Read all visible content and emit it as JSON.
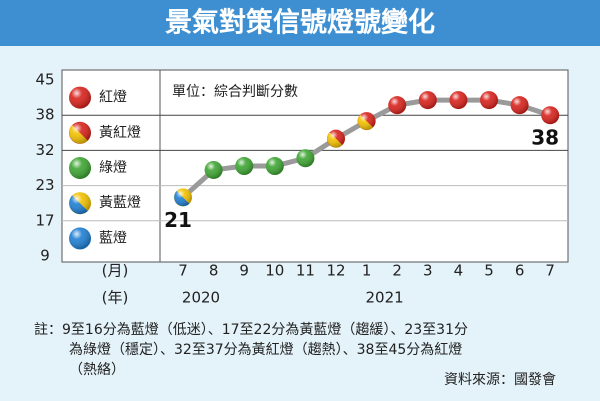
{
  "chart_data": {
    "type": "line",
    "title": "景氣對策信號燈號變化",
    "unit_note": "單位：綜合判斷分數",
    "x_unit_labels": [
      "(月)",
      "(年)"
    ],
    "categories": [
      "7",
      "8",
      "9",
      "10",
      "11",
      "12",
      "1",
      "2",
      "3",
      "4",
      "5",
      "6",
      "7"
    ],
    "years": [
      "2020",
      null,
      null,
      null,
      null,
      null,
      "2021",
      null,
      null,
      null,
      null,
      null,
      null
    ],
    "series": [
      {
        "name": "綜合判斷分數",
        "color": "#9a9a9a",
        "values": [
          21,
          27,
          28,
          28,
          30,
          34,
          37,
          40,
          41,
          41,
          41,
          40,
          38
        ]
      }
    ],
    "annotated_points": [
      0,
      12
    ],
    "ylim": [
      9,
      45
    ],
    "yticks": [
      9,
      17,
      23,
      32,
      38,
      45
    ],
    "signals": [
      {
        "label": "紅燈",
        "colors": [
          "#d8221c",
          "#d8221c"
        ]
      },
      {
        "label": "黃紅燈",
        "colors": [
          "#d8221c",
          "#f3c100"
        ]
      },
      {
        "label": "綠燈",
        "colors": [
          "#3ea533",
          "#3ea533"
        ]
      },
      {
        "label": "黃藍燈",
        "colors": [
          "#f3c100",
          "#1f7fd3"
        ]
      },
      {
        "label": "藍燈",
        "colors": [
          "#1f7fd3",
          "#1f7fd3"
        ]
      }
    ],
    "notes": [
      "註：9至16分為藍燈（低迷）、17至22分為黃藍燈（趨緩）、23至31分",
      "為綠燈（穩定）、32至37分為黃紅燈（趨熱）、38至45分為紅燈",
      "（熱絡）"
    ],
    "source": "資料來源：國發會"
  }
}
